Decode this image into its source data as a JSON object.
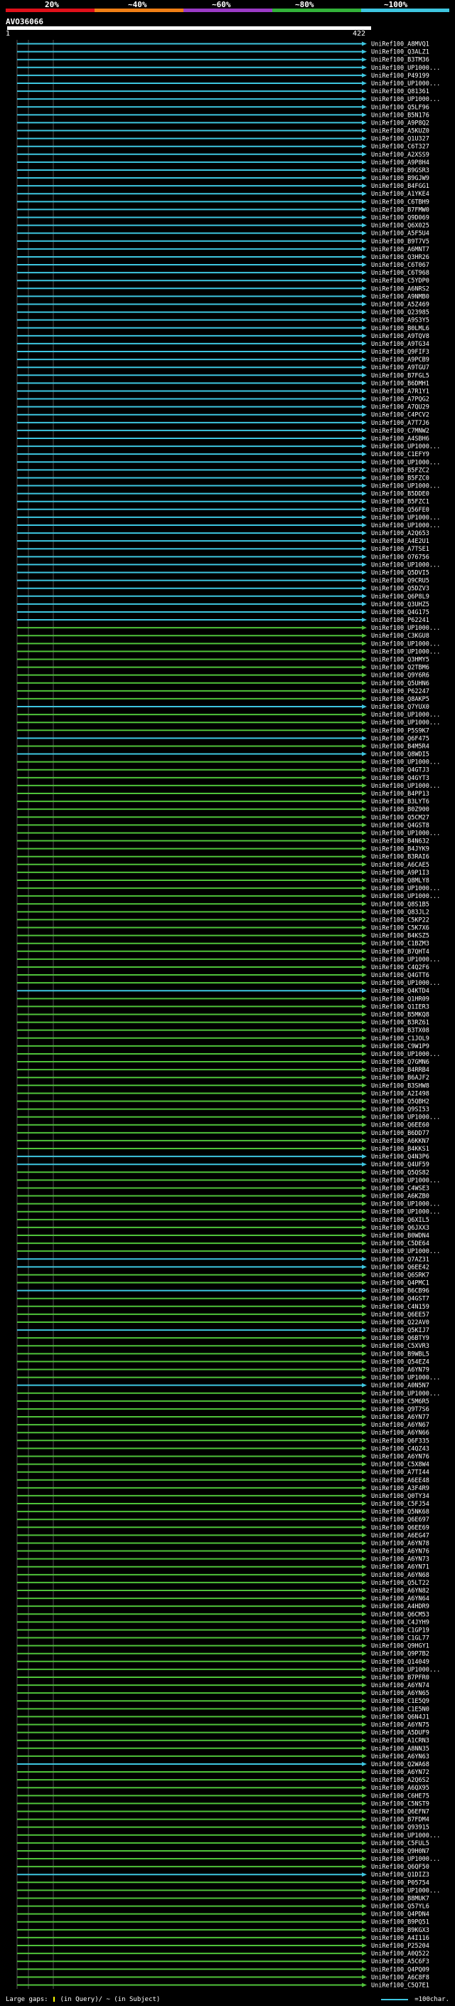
{
  "header": {
    "percent_labels": [
      "20%",
      "~40%",
      "~60%",
      "~80%",
      "~100%"
    ],
    "segment_colors": [
      "#e0101a",
      "#f07f16",
      "#9b3bc6",
      "#33b23a",
      "#3ec6e0"
    ]
  },
  "query": {
    "name": "AVO36066",
    "start": "1",
    "end": "422"
  },
  "colors": {
    "green": "#4fc23a",
    "cyan": "#3ec6e0",
    "gap_line": "#555555",
    "label": "#ffffff"
  },
  "hits": [
    {
      "label": "UniRef100_A8MVQ1",
      "color": "cyan"
    },
    {
      "label": "UniRef100_Q3ALZ1",
      "color": "cyan"
    },
    {
      "label": "UniRef100_B3TM36",
      "color": "cyan"
    },
    {
      "label": "UniRef100_UP1000...",
      "color": "cyan"
    },
    {
      "label": "UniRef100_P49199",
      "color": "cyan"
    },
    {
      "label": "UniRef100_UP1000...",
      "color": "cyan"
    },
    {
      "label": "UniRef100_Q81361",
      "color": "cyan"
    },
    {
      "label": "UniRef100_UP1000...",
      "color": "cyan"
    },
    {
      "label": "UniRef100_Q5LF96",
      "color": "cyan"
    },
    {
      "label": "UniRef100_B5N176",
      "color": "cyan"
    },
    {
      "label": "UniRef100_A9P8Q2",
      "color": "cyan"
    },
    {
      "label": "UniRef100_A5KUZ0",
      "color": "cyan"
    },
    {
      "label": "UniRef100_Q1U327",
      "color": "cyan"
    },
    {
      "label": "UniRef100_C6T327",
      "color": "cyan"
    },
    {
      "label": "UniRef100_A2XSS9",
      "color": "cyan"
    },
    {
      "label": "UniRef100_A9P8H4",
      "color": "cyan"
    },
    {
      "label": "UniRef100_B9GSR3",
      "color": "cyan"
    },
    {
      "label": "UniRef100_B9GJW9",
      "color": "cyan"
    },
    {
      "label": "UniRef100_B4FGG1",
      "color": "cyan"
    },
    {
      "label": "UniRef100_A1YKE4",
      "color": "cyan"
    },
    {
      "label": "UniRef100_C6TBH9",
      "color": "cyan"
    },
    {
      "label": "UniRef100_B7FMW0",
      "color": "cyan"
    },
    {
      "label": "UniRef100_Q9D069",
      "color": "cyan"
    },
    {
      "label": "UniRef100_Q6X025",
      "color": "cyan"
    },
    {
      "label": "UniRef100_A5F5U4",
      "color": "cyan"
    },
    {
      "label": "UniRef100_B9T7V5",
      "color": "cyan"
    },
    {
      "label": "UniRef100_A6MNT7",
      "color": "cyan"
    },
    {
      "label": "UniRef100_Q3HR26",
      "color": "cyan"
    },
    {
      "label": "UniRef100_C6T067",
      "color": "cyan"
    },
    {
      "label": "UniRef100_C6T968",
      "color": "cyan"
    },
    {
      "label": "UniRef100_C5YDP0",
      "color": "cyan"
    },
    {
      "label": "UniRef100_A6NRS2",
      "color": "cyan"
    },
    {
      "label": "UniRef100_A9NMB0",
      "color": "cyan"
    },
    {
      "label": "UniRef100_A5Z469",
      "color": "cyan"
    },
    {
      "label": "UniRef100_Q23985",
      "color": "cyan"
    },
    {
      "label": "UniRef100_A9S3Y5",
      "color": "cyan"
    },
    {
      "label": "UniRef100_B0LML6",
      "color": "cyan"
    },
    {
      "label": "UniRef100_A9TQV8",
      "color": "cyan"
    },
    {
      "label": "UniRef100_A9TG34",
      "color": "cyan"
    },
    {
      "label": "UniRef100_Q9FIF3",
      "color": "cyan"
    },
    {
      "label": "UniRef100_A9PCB9",
      "color": "cyan"
    },
    {
      "label": "UniRef100_A9TGU7",
      "color": "cyan"
    },
    {
      "label": "UniRef100_B7FGL5",
      "color": "cyan"
    },
    {
      "label": "UniRef100_B6DMH1",
      "color": "cyan"
    },
    {
      "label": "UniRef100_A7R1Y1",
      "color": "cyan"
    },
    {
      "label": "UniRef100_A7PQG2",
      "color": "cyan"
    },
    {
      "label": "UniRef100_A7QU29",
      "color": "cyan"
    },
    {
      "label": "UniRef100_C4PCV2",
      "color": "cyan"
    },
    {
      "label": "UniRef100_A7T7J6",
      "color": "cyan"
    },
    {
      "label": "UniRef100_C7MNW2",
      "color": "cyan"
    },
    {
      "label": "UniRef100_A4SBH6",
      "color": "cyan"
    },
    {
      "label": "UniRef100_UP1000...",
      "color": "cyan"
    },
    {
      "label": "UniRef100_C1EFY9",
      "color": "cyan"
    },
    {
      "label": "UniRef100_UP1000...",
      "color": "cyan"
    },
    {
      "label": "UniRef100_B5FZC2",
      "color": "cyan"
    },
    {
      "label": "UniRef100_B5FZC0",
      "color": "cyan"
    },
    {
      "label": "UniRef100_UP1000...",
      "color": "cyan"
    },
    {
      "label": "UniRef100_B5DDE0",
      "color": "cyan"
    },
    {
      "label": "UniRef100_B5FZC1",
      "color": "cyan"
    },
    {
      "label": "UniRef100_Q56FE0",
      "color": "cyan"
    },
    {
      "label": "UniRef100_UP1000...",
      "color": "cyan"
    },
    {
      "label": "UniRef100_UP1000...",
      "color": "cyan"
    },
    {
      "label": "UniRef100_A2Q653",
      "color": "cyan"
    },
    {
      "label": "UniRef100_A4E2U1",
      "color": "cyan"
    },
    {
      "label": "UniRef100_A7TSE1",
      "color": "cyan"
    },
    {
      "label": "UniRef100_O76756",
      "color": "cyan"
    },
    {
      "label": "UniRef100_UP1000...",
      "color": "cyan"
    },
    {
      "label": "UniRef100_Q5DVI5",
      "color": "cyan"
    },
    {
      "label": "UniRef100_Q9CRU5",
      "color": "cyan"
    },
    {
      "label": "UniRef100_Q5DZV3",
      "color": "cyan"
    },
    {
      "label": "UniRef100_Q6P8L9",
      "color": "cyan"
    },
    {
      "label": "UniRef100_Q3UHZ5",
      "color": "cyan"
    },
    {
      "label": "UniRef100_Q4G175",
      "color": "cyan"
    },
    {
      "label": "UniRef100_P62241",
      "color": "cyan"
    },
    {
      "label": "UniRef100_UP1000...",
      "color": "green"
    },
    {
      "label": "UniRef100_C3KGU8",
      "color": "green"
    },
    {
      "label": "UniRef100_UP1000...",
      "color": "green"
    },
    {
      "label": "UniRef100_UP1000...",
      "color": "green"
    },
    {
      "label": "UniRef100_Q3HMY5",
      "color": "green"
    },
    {
      "label": "UniRef100_Q2TBM6",
      "color": "green"
    },
    {
      "label": "UniRef100_Q9Y6R6",
      "color": "green"
    },
    {
      "label": "UniRef100_Q5UHN6",
      "color": "green"
    },
    {
      "label": "UniRef100_P62247",
      "color": "green"
    },
    {
      "label": "UniRef100_Q8AKP5",
      "color": "green"
    },
    {
      "label": "UniRef100_Q7YUX0",
      "color": "cyan"
    },
    {
      "label": "UniRef100_UP1000...",
      "color": "green"
    },
    {
      "label": "UniRef100_UP1000...",
      "color": "green"
    },
    {
      "label": "UniRef100_P5S9K7",
      "color": "green"
    },
    {
      "label": "UniRef100_Q6F475",
      "color": "cyan"
    },
    {
      "label": "UniRef100_B4M5R4",
      "color": "green"
    },
    {
      "label": "UniRef100_Q8WDI5",
      "color": "cyan"
    },
    {
      "label": "UniRef100_UP1000...",
      "color": "green"
    },
    {
      "label": "UniRef100_Q4GTJ3",
      "color": "green"
    },
    {
      "label": "UniRef100_Q4GYT3",
      "color": "green"
    },
    {
      "label": "UniRef100_UP1000...",
      "color": "green"
    },
    {
      "label": "UniRef100_B4PP13",
      "color": "green"
    },
    {
      "label": "UniRef100_B3LYT6",
      "color": "green"
    },
    {
      "label": "UniRef100_B0Z900",
      "color": "green"
    },
    {
      "label": "UniRef100_Q5CM27",
      "color": "green"
    },
    {
      "label": "UniRef100_Q4GST8",
      "color": "green"
    },
    {
      "label": "UniRef100_UP1000...",
      "color": "green"
    },
    {
      "label": "UniRef100_B4N632",
      "color": "green"
    },
    {
      "label": "UniRef100_B4JYK9",
      "color": "green"
    },
    {
      "label": "UniRef100_B3RAI6",
      "color": "green"
    },
    {
      "label": "UniRef100_A6CAE5",
      "color": "green"
    },
    {
      "label": "UniRef100_A9P1I3",
      "color": "green"
    },
    {
      "label": "UniRef100_Q8MLY8",
      "color": "green"
    },
    {
      "label": "UniRef100_UP1000...",
      "color": "green"
    },
    {
      "label": "UniRef100_UP1000...",
      "color": "green"
    },
    {
      "label": "UniRef100_Q8S1B5",
      "color": "green"
    },
    {
      "label": "UniRef100_Q83JL2",
      "color": "green"
    },
    {
      "label": "UniRef100_C5KP22",
      "color": "green"
    },
    {
      "label": "UniRef100_C5K7X6",
      "color": "green"
    },
    {
      "label": "UniRef100_B4KSZ5",
      "color": "green"
    },
    {
      "label": "UniRef100_C1BZM3",
      "color": "green"
    },
    {
      "label": "UniRef100_B7QHT4",
      "color": "green"
    },
    {
      "label": "UniRef100_UP1000...",
      "color": "green"
    },
    {
      "label": "UniRef100_C4Q2F6",
      "color": "green"
    },
    {
      "label": "UniRef100_Q4GTT6",
      "color": "green"
    },
    {
      "label": "UniRef100_UP1000...",
      "color": "green"
    },
    {
      "label": "UniRef100_Q4KTD4",
      "color": "cyan"
    },
    {
      "label": "UniRef100_Q1HR09",
      "color": "green"
    },
    {
      "label": "UniRef100_Q1IER3",
      "color": "green"
    },
    {
      "label": "UniRef100_B5MKQ8",
      "color": "green"
    },
    {
      "label": "UniRef100_B3RZ61",
      "color": "green"
    },
    {
      "label": "UniRef100_B3TX08",
      "color": "green"
    },
    {
      "label": "UniRef100_C1JOL9",
      "color": "green"
    },
    {
      "label": "UniRef100_C9W1P9",
      "color": "green"
    },
    {
      "label": "UniRef100_UP1000...",
      "color": "green"
    },
    {
      "label": "UniRef100_Q7GMN6",
      "color": "green"
    },
    {
      "label": "UniRef100_B4RRB4",
      "color": "green"
    },
    {
      "label": "UniRef100_B6AJF2",
      "color": "green"
    },
    {
      "label": "UniRef100_B3SHW8",
      "color": "green"
    },
    {
      "label": "UniRef100_A2I498",
      "color": "green"
    },
    {
      "label": "UniRef100_Q5QBH2",
      "color": "green"
    },
    {
      "label": "UniRef100_Q9SI53",
      "color": "green"
    },
    {
      "label": "UniRef100_UP1000...",
      "color": "green"
    },
    {
      "label": "UniRef100_Q6EE60",
      "color": "green"
    },
    {
      "label": "UniRef100_B6DD77",
      "color": "green"
    },
    {
      "label": "UniRef100_A6KKN7",
      "color": "green"
    },
    {
      "label": "UniRef100_B4KKS1",
      "color": "green"
    },
    {
      "label": "UniRef100_Q4N3P6",
      "color": "cyan"
    },
    {
      "label": "UniRef100_Q4UF59",
      "color": "cyan"
    },
    {
      "label": "UniRef100_Q5QS82",
      "color": "green"
    },
    {
      "label": "UniRef100_UP1000...",
      "color": "green"
    },
    {
      "label": "UniRef100_C4WSE3",
      "color": "green"
    },
    {
      "label": "UniRef100_A6KZB0",
      "color": "green"
    },
    {
      "label": "UniRef100_UP1000...",
      "color": "green"
    },
    {
      "label": "UniRef100_UP1000...",
      "color": "green"
    },
    {
      "label": "UniRef100_Q6XIL5",
      "color": "green"
    },
    {
      "label": "UniRef100_Q6JXX3",
      "color": "green"
    },
    {
      "label": "UniRef100_B0WDN4",
      "color": "green"
    },
    {
      "label": "UniRef100_C5DE64",
      "color": "green"
    },
    {
      "label": "UniRef100_UP1000...",
      "color": "green"
    },
    {
      "label": "UniRef100_Q7AZ31",
      "color": "cyan"
    },
    {
      "label": "UniRef100_Q6EE42",
      "color": "cyan"
    },
    {
      "label": "UniRef100_Q6SRK7",
      "color": "green"
    },
    {
      "label": "UniRef100_Q4PMC1",
      "color": "green"
    },
    {
      "label": "UniRef100_B6CB96",
      "color": "cyan"
    },
    {
      "label": "UniRef100_Q4GST7",
      "color": "green"
    },
    {
      "label": "UniRef100_C4N159",
      "color": "green"
    },
    {
      "label": "UniRef100_Q6EE57",
      "color": "green"
    },
    {
      "label": "UniRef100_Q22AV0",
      "color": "green"
    },
    {
      "label": "UniRef100_Q5KIJ7",
      "color": "cyan"
    },
    {
      "label": "UniRef100_Q6BTY9",
      "color": "green"
    },
    {
      "label": "UniRef100_C5XVR3",
      "color": "green"
    },
    {
      "label": "UniRef100_B9WBL5",
      "color": "green"
    },
    {
      "label": "UniRef100_Q54EZ4",
      "color": "green"
    },
    {
      "label": "UniRef100_A6YN79",
      "color": "green"
    },
    {
      "label": "UniRef100_UP1000...",
      "color": "green"
    },
    {
      "label": "UniRef100_A0N5N7",
      "color": "cyan"
    },
    {
      "label": "UniRef100_UP1000...",
      "color": "green"
    },
    {
      "label": "UniRef100_C5M6R5",
      "color": "green"
    },
    {
      "label": "UniRef100_Q9T7S6",
      "color": "green"
    },
    {
      "label": "UniRef100_A6YN77",
      "color": "green"
    },
    {
      "label": "UniRef100_A6YN67",
      "color": "green"
    },
    {
      "label": "UniRef100_A6YN66",
      "color": "green"
    },
    {
      "label": "UniRef100_Q6F335",
      "color": "green"
    },
    {
      "label": "UniRef100_C4QZ43",
      "color": "green"
    },
    {
      "label": "UniRef100_A6YN76",
      "color": "green"
    },
    {
      "label": "UniRef100_C5X8W4",
      "color": "green"
    },
    {
      "label": "UniRef100_A7TI44",
      "color": "green"
    },
    {
      "label": "UniRef100_A6EE48",
      "color": "green"
    },
    {
      "label": "UniRef100_A3F4R9",
      "color": "green"
    },
    {
      "label": "UniRef100_Q0TY34",
      "color": "green"
    },
    {
      "label": "UniRef100_C5FJ54",
      "color": "green"
    },
    {
      "label": "UniRef100_Q5NK68",
      "color": "green"
    },
    {
      "label": "UniRef100_Q6E697",
      "color": "green"
    },
    {
      "label": "UniRef100_Q6EE69",
      "color": "green"
    },
    {
      "label": "UniRef100_A6EG47",
      "color": "green"
    },
    {
      "label": "UniRef100_A6YN78",
      "color": "green"
    },
    {
      "label": "UniRef100_A6YN76",
      "color": "green"
    },
    {
      "label": "UniRef100_A6YN73",
      "color": "green"
    },
    {
      "label": "UniRef100_A6YN71",
      "color": "green"
    },
    {
      "label": "UniRef100_A6YN68",
      "color": "green"
    },
    {
      "label": "UniRef100_Q5LT22",
      "color": "green"
    },
    {
      "label": "UniRef100_A6YN82",
      "color": "green"
    },
    {
      "label": "UniRef100_A6YN64",
      "color": "green"
    },
    {
      "label": "UniRef100_A4HDR9",
      "color": "green"
    },
    {
      "label": "UniRef100_Q6CM53",
      "color": "green"
    },
    {
      "label": "UniRef100_C4JYH9",
      "color": "green"
    },
    {
      "label": "UniRef100_C1GP19",
      "color": "green"
    },
    {
      "label": "UniRef100_C1GL77",
      "color": "green"
    },
    {
      "label": "UniRef100_Q9HGY1",
      "color": "green"
    },
    {
      "label": "UniRef100_Q9P7B2",
      "color": "green"
    },
    {
      "label": "UniRef100_Q14049",
      "color": "green"
    },
    {
      "label": "UniRef100_UP1000...",
      "color": "green"
    },
    {
      "label": "UniRef100_B7PFR0",
      "color": "green"
    },
    {
      "label": "UniRef100_A6YN74",
      "color": "green"
    },
    {
      "label": "UniRef100_A6YN65",
      "color": "green"
    },
    {
      "label": "UniRef100_C1E5Q9",
      "color": "green"
    },
    {
      "label": "UniRef100_C1E5N0",
      "color": "green"
    },
    {
      "label": "UniRef100_Q6N4J1",
      "color": "green"
    },
    {
      "label": "UniRef100_A6YN75",
      "color": "green"
    },
    {
      "label": "UniRef100_A5DUF9",
      "color": "green"
    },
    {
      "label": "UniRef100_A1CRN3",
      "color": "green"
    },
    {
      "label": "UniRef100_A8NN35",
      "color": "green"
    },
    {
      "label": "UniRef100_A6YN63",
      "color": "green"
    },
    {
      "label": "UniRef100_Q2WA68",
      "color": "cyan"
    },
    {
      "label": "UniRef100_A6YN72",
      "color": "green"
    },
    {
      "label": "UniRef100_A2Q6S2",
      "color": "green"
    },
    {
      "label": "UniRef100_A6QX95",
      "color": "green"
    },
    {
      "label": "UniRef100_C6HE75",
      "color": "green"
    },
    {
      "label": "UniRef100_C5NST9",
      "color": "green"
    },
    {
      "label": "UniRef100_Q6EFN7",
      "color": "green"
    },
    {
      "label": "UniRef100_B7FDM4",
      "color": "green"
    },
    {
      "label": "UniRef100_Q93915",
      "color": "green"
    },
    {
      "label": "UniRef100_UP1000...",
      "color": "green"
    },
    {
      "label": "UniRef100_C5FUL5",
      "color": "green"
    },
    {
      "label": "UniRef100_Q9H0N7",
      "color": "green"
    },
    {
      "label": "UniRef100_UP1000...",
      "color": "green"
    },
    {
      "label": "UniRef100_Q6QF50",
      "color": "green"
    },
    {
      "label": "UniRef100_Q1DIZ3",
      "color": "cyan"
    },
    {
      "label": "UniRef100_P05754",
      "color": "green"
    },
    {
      "label": "UniRef100_UP1000...",
      "color": "green"
    },
    {
      "label": "UniRef100_B8MUK7",
      "color": "green"
    },
    {
      "label": "UniRef100_Q57YL6",
      "color": "green"
    },
    {
      "label": "UniRef100_Q4PDN4",
      "color": "green"
    },
    {
      "label": "UniRef100_B9PQ51",
      "color": "green"
    },
    {
      "label": "UniRef100_B9KGX3",
      "color": "green"
    },
    {
      "label": "UniRef100_A4I116",
      "color": "green"
    },
    {
      "label": "UniRef100_P25204",
      "color": "green"
    },
    {
      "label": "UniRef100_A0Q522",
      "color": "green"
    },
    {
      "label": "UniRef100_A5C6F3",
      "color": "green"
    },
    {
      "label": "UniRef100_Q4PQ09",
      "color": "green"
    },
    {
      "label": "UniRef100_A6C8F8",
      "color": "green"
    },
    {
      "label": "UniRef100_C5Q7E1",
      "color": "green"
    }
  ],
  "footer": {
    "gaps_text": "Large gaps:",
    "gaps_desc": "(in Query)/ ~ (in Subject)",
    "scale_text": "=100char."
  }
}
